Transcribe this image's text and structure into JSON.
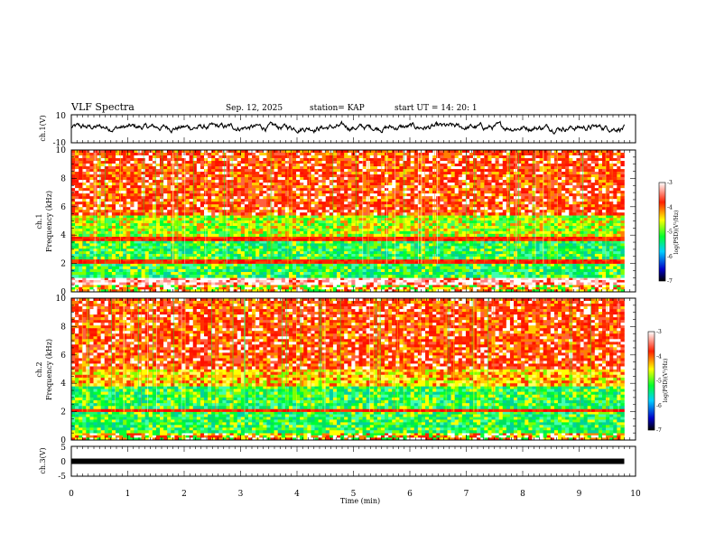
{
  "header": {
    "title": "VLF Spectra",
    "date": "Sep. 12, 2025",
    "station": "station= KAP",
    "start": "start  UT =   14: 20: 1"
  },
  "chart_data": [
    {
      "type": "line",
      "name": "ch1-waveform",
      "ylabel": "ch.1(V)",
      "ylim": [
        -10,
        10
      ],
      "ytick_labels": [
        "10",
        "-10"
      ],
      "xlim": [
        0,
        10
      ],
      "trace_span_min": [
        0,
        9.8
      ],
      "description_level_V": [
        -1.5,
        3.5
      ]
    },
    {
      "type": "heatmap",
      "name": "ch1-spectrogram",
      "ylabel": "ch.1 Frequency (kHz)",
      "ylabel_ch": "ch.1",
      "ylabel_freq": "Frequency (kHz)",
      "ylim": [
        0,
        10
      ],
      "yticks": [
        "0",
        "2",
        "4",
        "6",
        "8",
        "10"
      ],
      "xlim": [
        0,
        10
      ],
      "data_span_min": [
        0,
        9.8
      ],
      "colorbar": {
        "label": "log(PSD)(V²/Hz)",
        "range": [
          -7,
          -3
        ],
        "ticks": [
          "-3",
          "-4",
          "-5",
          "-6",
          "-7"
        ],
        "colors": [
          "#000000",
          "#0000c8",
          "#00d0ff",
          "#00ff30",
          "#ffff00",
          "#ff2000",
          "#ffffff"
        ]
      },
      "bands_kHz": [
        {
          "from": 0,
          "to": 0.5,
          "level": "mixed"
        },
        {
          "from": 0.5,
          "to": 1.0,
          "level": "white-red"
        },
        {
          "from": 1.0,
          "to": 2.0,
          "level": "green"
        },
        {
          "from": 2.0,
          "to": 2.3,
          "level": "red-line"
        },
        {
          "from": 2.3,
          "to": 3.6,
          "level": "green"
        },
        {
          "from": 3.6,
          "to": 3.9,
          "level": "red-line"
        },
        {
          "from": 3.9,
          "to": 5.4,
          "level": "green-yellow"
        },
        {
          "from": 5.4,
          "to": 10,
          "level": "red"
        }
      ]
    },
    {
      "type": "heatmap",
      "name": "ch2-spectrogram",
      "ylabel": "ch.2 Frequency (kHz)",
      "ylabel_ch": "ch.2",
      "ylabel_freq": "Frequency (kHz)",
      "ylim": [
        0,
        10
      ],
      "yticks": [
        "0",
        "2",
        "4",
        "6",
        "8",
        "10"
      ],
      "xlim": [
        0,
        10
      ],
      "data_span_min": [
        0,
        9.8
      ],
      "colorbar": {
        "label": "log(PSD)(V²/Hz)",
        "range": [
          -7,
          -3
        ],
        "ticks": [
          "-3",
          "-4",
          "-5",
          "-6",
          "-7"
        ],
        "colors": [
          "#000000",
          "#0000c8",
          "#00d0ff",
          "#00ff30",
          "#ffff00",
          "#ff2000",
          "#ffffff"
        ]
      },
      "bands_kHz": [
        {
          "from": 0,
          "to": 0.5,
          "level": "mixed"
        },
        {
          "from": 0.5,
          "to": 2.0,
          "level": "green"
        },
        {
          "from": 2.0,
          "to": 2.2,
          "level": "red-line"
        },
        {
          "from": 2.2,
          "to": 3.8,
          "level": "green"
        },
        {
          "from": 3.8,
          "to": 5.0,
          "level": "yellow"
        },
        {
          "from": 5.0,
          "to": 10,
          "level": "red"
        }
      ]
    },
    {
      "type": "line",
      "name": "ch3-waveform",
      "ylabel": "ch.3(V)",
      "ylim": [
        -5,
        5
      ],
      "ytick_labels": [
        "5",
        "0",
        "-5"
      ],
      "xlim": [
        0,
        10
      ],
      "level_V": [
        -0.3,
        0.3
      ],
      "trace_span_min": [
        0,
        9.8
      ]
    }
  ],
  "xaxis": {
    "label": "Time (min)",
    "ticks": [
      "0",
      "1",
      "2",
      "3",
      "4",
      "5",
      "6",
      "7",
      "8",
      "9",
      "10"
    ]
  }
}
